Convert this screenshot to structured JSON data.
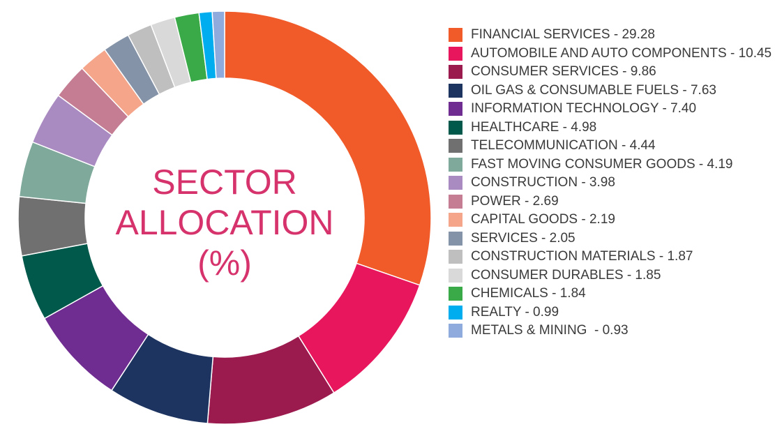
{
  "chart_data": {
    "type": "donut",
    "title": "SECTOR ALLOCATION (%)",
    "categories": [
      "FINANCIAL SERVICES - 29.28",
      "AUTOMOBILE AND AUTO COMPONENTS - 10.45",
      "CONSUMER SERVICES - 9.86",
      "OIL GAS & CONSUMABLE FUELS - 7.63",
      "INFORMATION TECHNOLOGY - 7.40",
      "HEALTHCARE - 4.98",
      "TELECOMMUNICATION - 4.44",
      "FAST MOVING CONSUMER GOODS - 4.19",
      "CONSTRUCTION - 3.98",
      "POWER - 2.69",
      "CAPITAL GOODS - 2.19",
      "SERVICES - 2.05",
      "CONSTRUCTION MATERIALS - 1.87",
      "CONSUMER DURABLES - 1.85",
      "CHEMICALS - 1.84",
      "REALTY - 0.99",
      "METALS & MINING  - 0.93"
    ],
    "values": [
      29.28,
      10.45,
      9.86,
      7.63,
      7.4,
      4.98,
      4.44,
      4.19,
      3.98,
      2.69,
      2.19,
      2.05,
      1.87,
      1.85,
      1.84,
      0.99,
      0.93
    ],
    "colors": [
      "#f15a29",
      "#e8175d",
      "#9b1b4e",
      "#1d3461",
      "#6f2c91",
      "#00594a",
      "#707070",
      "#7fa99b",
      "#a98bc2",
      "#c47d92",
      "#f5a58a",
      "#8593a8",
      "#bfbfbf",
      "#d9d9d9",
      "#3aaa49",
      "#00aeef",
      "#8faadc"
    ]
  }
}
